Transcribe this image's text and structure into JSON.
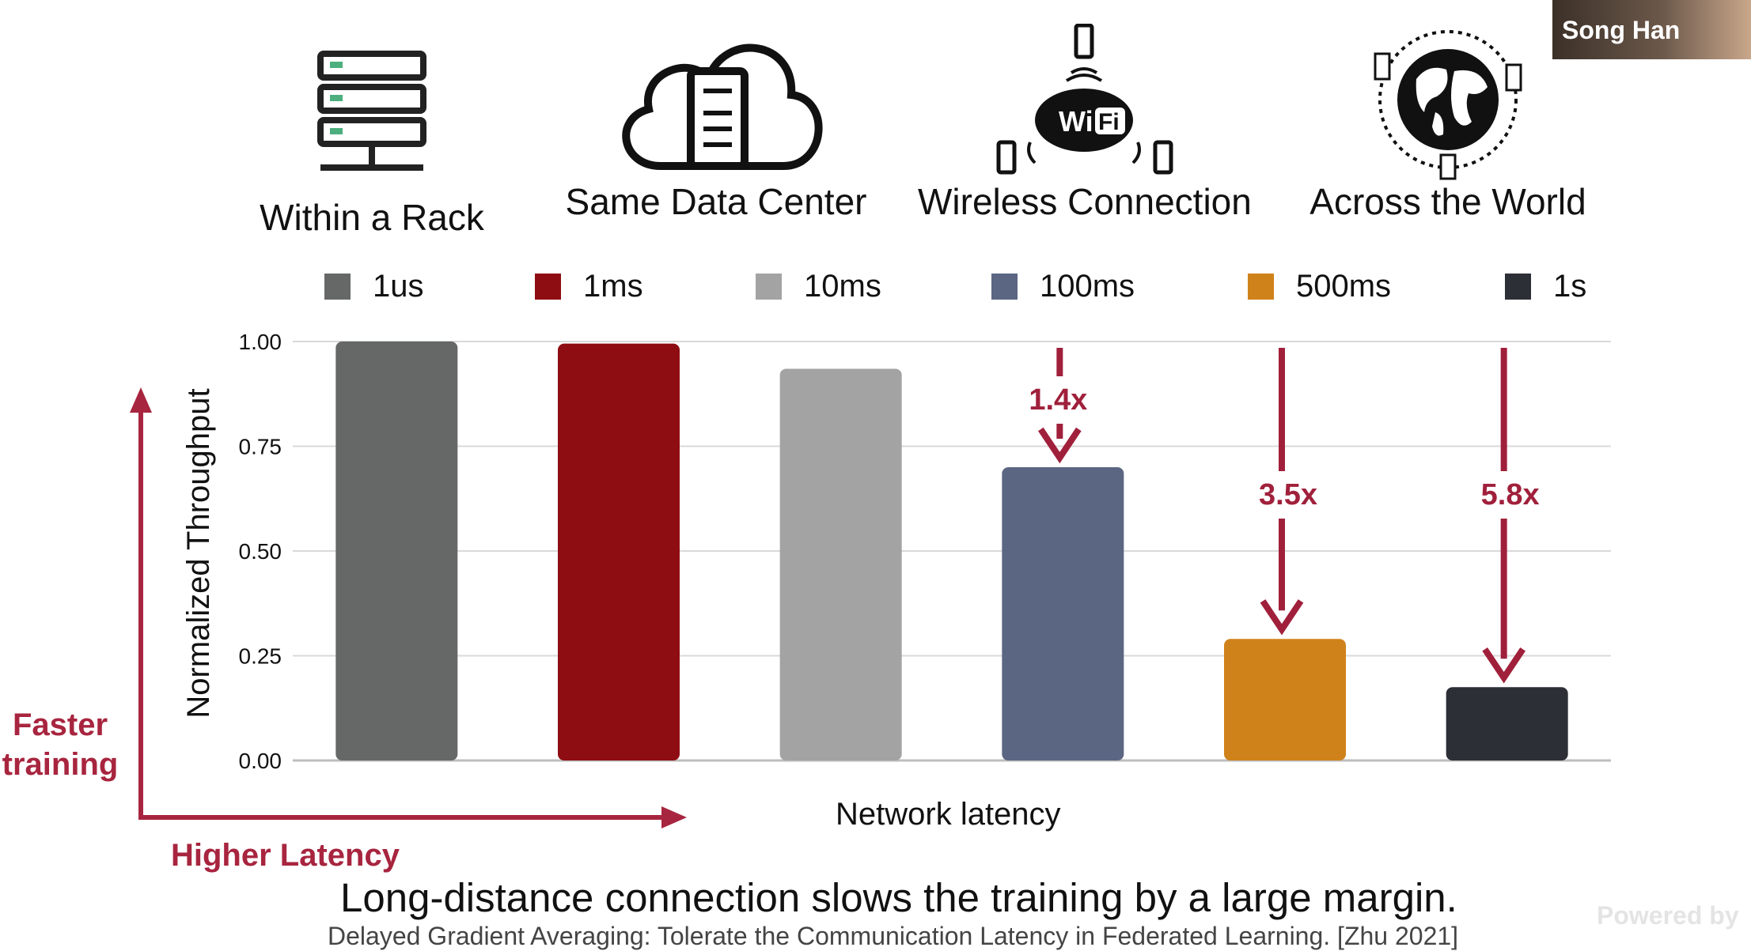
{
  "categories_header": [
    {
      "label": "Within a Rack",
      "icon": "server-rack-icon"
    },
    {
      "label": "Same Data Center",
      "icon": "cloud-server-icon"
    },
    {
      "label": "Wireless Connection",
      "icon": "wifi-devices-icon"
    },
    {
      "label": "Across the World",
      "icon": "globe-network-icon"
    }
  ],
  "legend": [
    {
      "label": "1us",
      "color": "#666767"
    },
    {
      "label": "1ms",
      "color": "#8e0d12"
    },
    {
      "label": "10ms",
      "color": "#a3a3a3"
    },
    {
      "label": "100ms",
      "color": "#5b6683"
    },
    {
      "label": "500ms",
      "color": "#d0821a"
    },
    {
      "label": "1s",
      "color": "#2c2f36"
    }
  ],
  "chart_data": {
    "type": "bar",
    "categories": [
      "1us",
      "1ms",
      "10ms",
      "100ms",
      "500ms",
      "1s"
    ],
    "values": [
      1.0,
      0.995,
      0.935,
      0.7,
      0.29,
      0.175
    ],
    "ylabel": "Normalized Throughput",
    "xlabel": "Network latency",
    "ylim": [
      0,
      1
    ],
    "yticks": [
      "0.00",
      "0.25",
      "0.50",
      "0.75",
      "1.00"
    ],
    "grid": true,
    "legend_placement": "top",
    "annotations": [
      {
        "text": "1.4x",
        "category": "100ms"
      },
      {
        "text": "3.5x",
        "category": "500ms"
      },
      {
        "text": "5.8x",
        "category": "1s"
      }
    ]
  },
  "axis_annotations": {
    "vertical": "Faster training",
    "vertical_line1": "Faster",
    "vertical_line2": "training",
    "horizontal": "Higher Latency"
  },
  "caption": "Long-distance connection slows the training by a large margin.",
  "citation": "Delayed Gradient Averaging: Tolerate the Communication Latency in Federated Learning. [Zhu 2021]",
  "presenter": "Song Han",
  "watermark": "Powered by",
  "colors": {
    "accent": "#a8253f",
    "annotation": "#a0203b"
  }
}
